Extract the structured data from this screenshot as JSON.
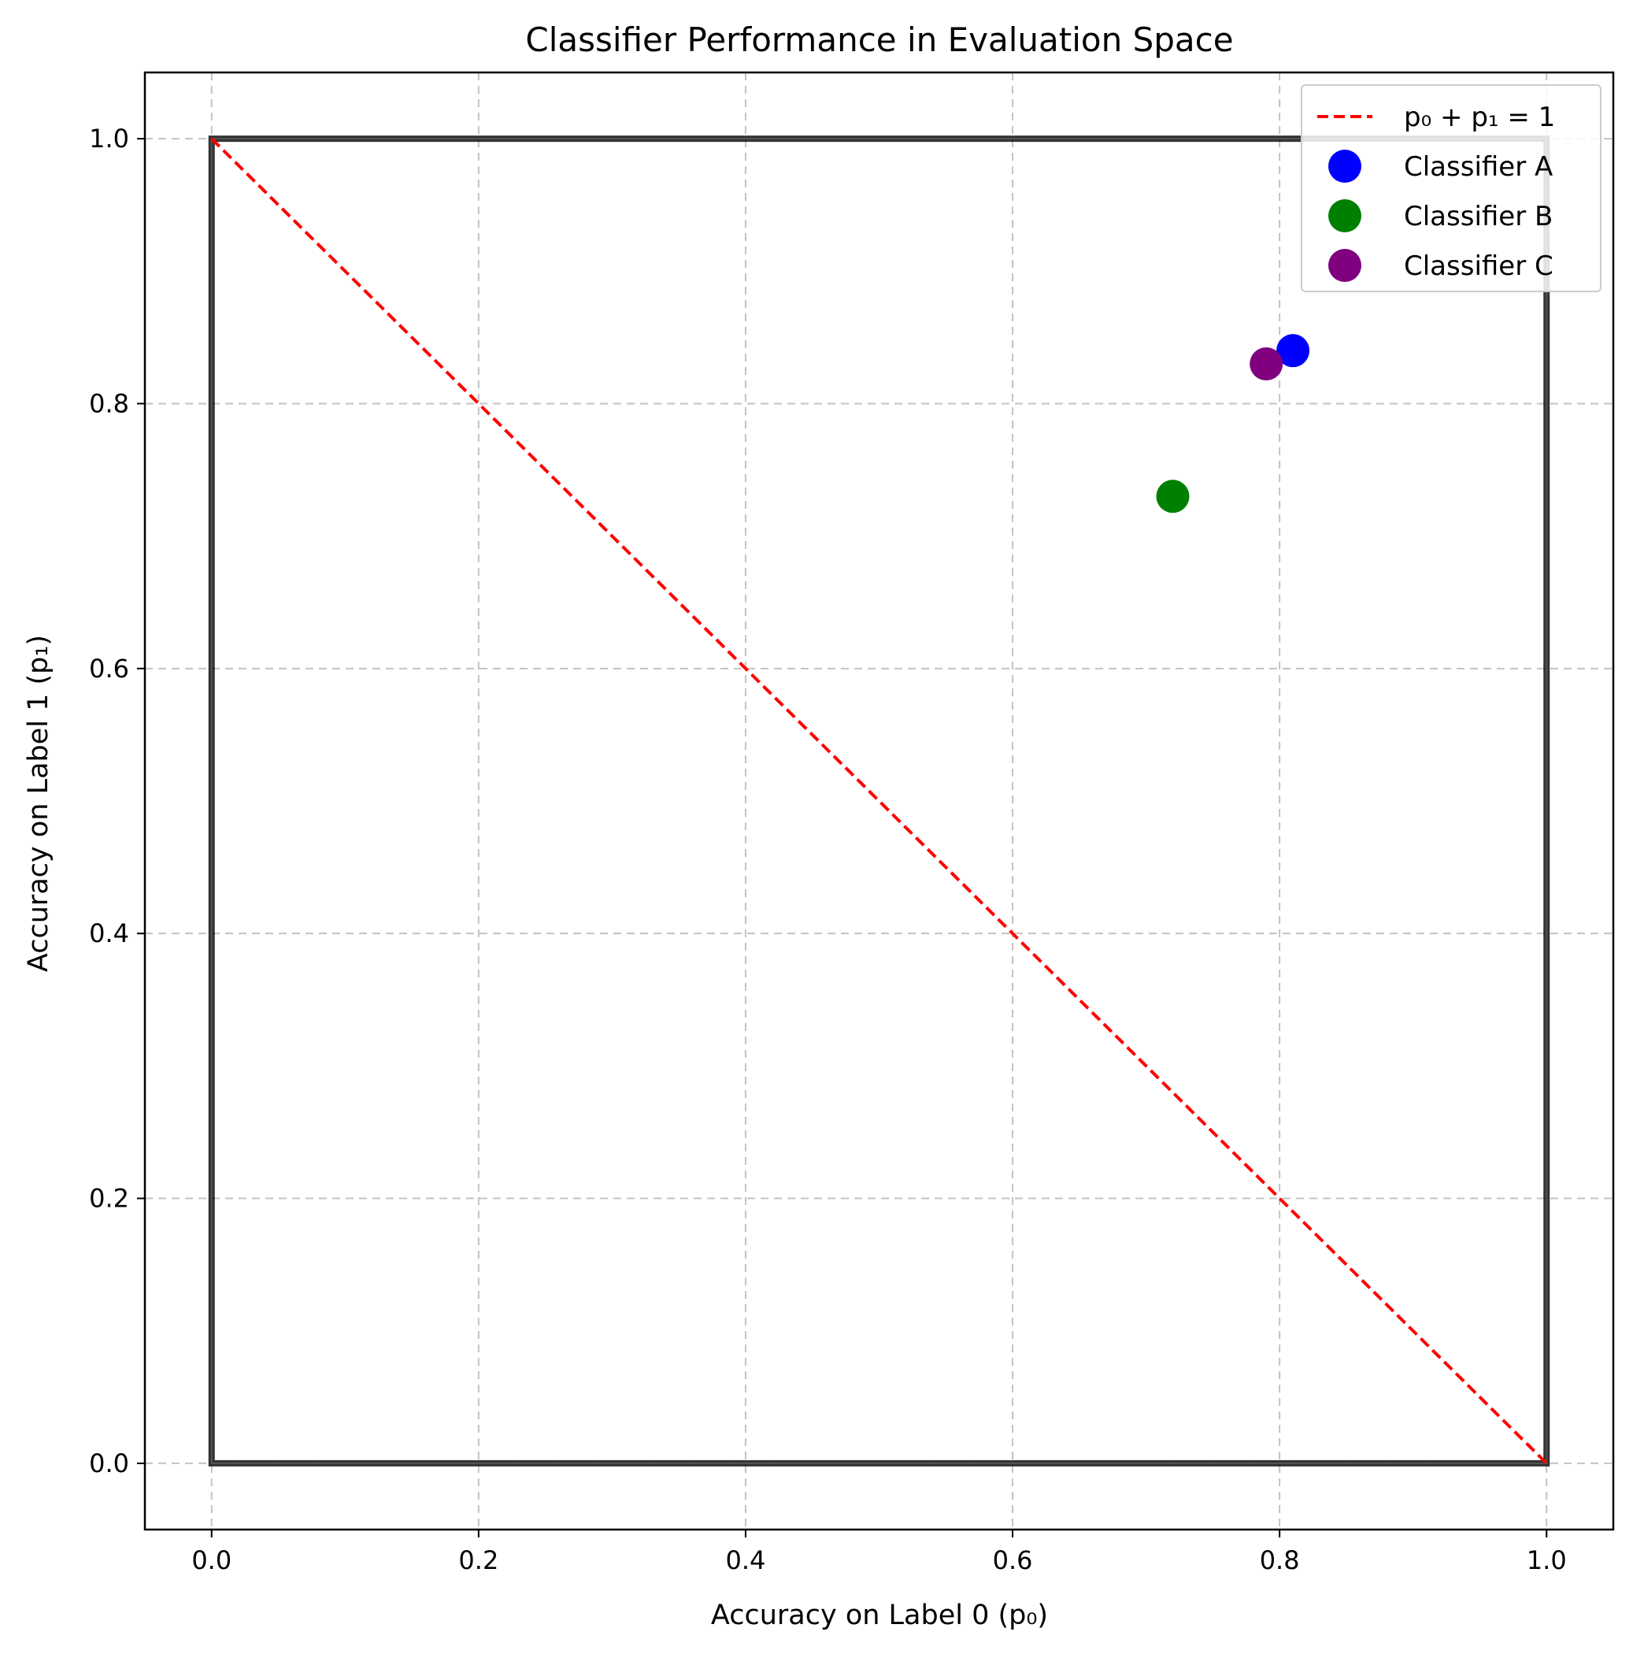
{
  "chart_data": {
    "type": "scatter",
    "title": "Classifier Performance in Evaluation Space",
    "xlabel": "Accuracy on Label 0 (p₀)",
    "ylabel": "Accuracy on Label 1 (p₁)",
    "xlim": [
      -0.05,
      1.05
    ],
    "ylim": [
      -0.05,
      1.05
    ],
    "xticks": [
      0.0,
      0.2,
      0.4,
      0.6,
      0.8,
      1.0
    ],
    "yticks": [
      0.0,
      0.2,
      0.4,
      0.6,
      0.8,
      1.0
    ],
    "xtick_labels": [
      "0.0",
      "0.2",
      "0.4",
      "0.6",
      "0.8",
      "1.0"
    ],
    "ytick_labels": [
      "0.0",
      "0.2",
      "0.4",
      "0.6",
      "0.8",
      "1.0"
    ],
    "grid": true,
    "legend_position": "top-right",
    "unit_square": [
      [
        0,
        0
      ],
      [
        1,
        0
      ],
      [
        1,
        1
      ],
      [
        0,
        1
      ]
    ],
    "line": {
      "name": "p₀ + p₁ = 1",
      "x": [
        0,
        1
      ],
      "y": [
        1,
        0
      ],
      "color": "#ff0000",
      "style": "dashed"
    },
    "series": [
      {
        "name": "Classifier A",
        "x": 0.81,
        "y": 0.84,
        "color": "#0000ff"
      },
      {
        "name": "Classifier B",
        "x": 0.72,
        "y": 0.73,
        "color": "#008000"
      },
      {
        "name": "Classifier C",
        "x": 0.79,
        "y": 0.83,
        "color": "#800080"
      }
    ]
  }
}
